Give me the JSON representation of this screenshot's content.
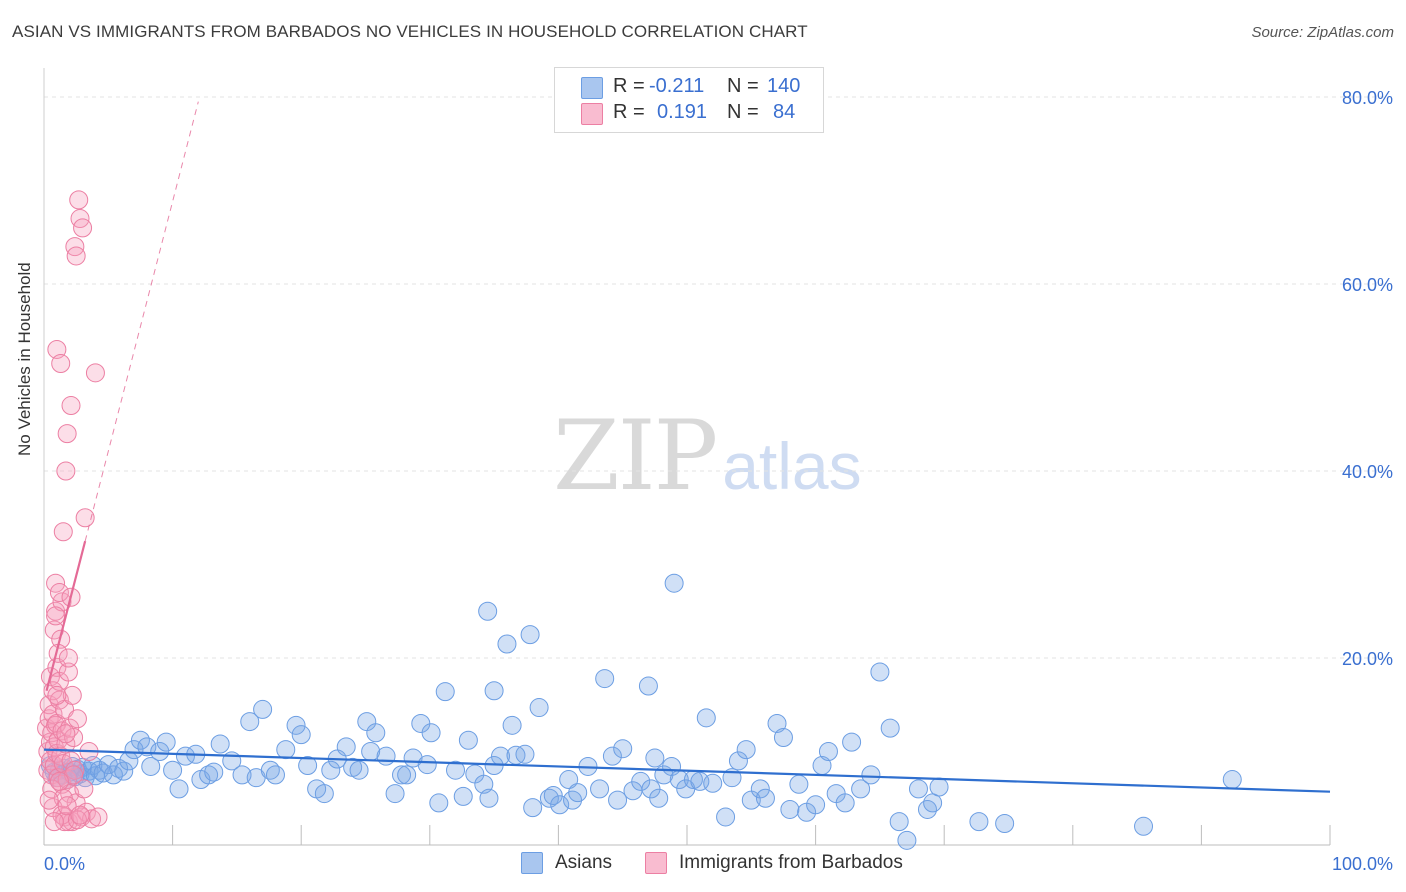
{
  "header": {
    "title": "ASIAN VS IMMIGRANTS FROM BARBADOS NO VEHICLES IN HOUSEHOLD CORRELATION CHART",
    "source": "Source: ZipAtlas.com"
  },
  "watermark": {
    "zip": "ZIP",
    "atlas": "atlas"
  },
  "legend": {
    "rows": [
      {
        "r_label": "R =",
        "r_value": "-0.211",
        "n_label": "N =",
        "n_value": "140",
        "color": "#a9c6ef",
        "edge": "#6c9ee3"
      },
      {
        "r_label": "R =",
        "r_value": "0.191",
        "n_label": "N =",
        "n_value": "84",
        "color": "#f9bcd0",
        "edge": "#ec7fa3"
      }
    ]
  },
  "bottom_legend": [
    {
      "label": "Asians",
      "color": "#a9c6ef",
      "edge": "#6c9ee3"
    },
    {
      "label": "Immigrants from Barbados",
      "color": "#f9bcd0",
      "edge": "#ec7fa3"
    }
  ],
  "colors": {
    "asian": "#6c9ee3",
    "asian_fill": "rgba(120,165,230,0.35)",
    "barbados": "#ec7fa3",
    "barbados_fill": "rgba(245,160,190,0.35)",
    "trend_asian": "#2f6fcf",
    "trend_barbados": "#e46a96",
    "tick_label": "#3a6fd0"
  },
  "chart_data": {
    "type": "scatter",
    "title": "ASIAN VS IMMIGRANTS FROM BARBADOS NO VEHICLES IN HOUSEHOLD CORRELATION CHART",
    "xlabel": "",
    "ylabel": "No Vehicles in Household",
    "xlim": [
      0,
      100
    ],
    "ylim": [
      0,
      80
    ],
    "x_tick_labels": [
      "0.0%",
      "100.0%"
    ],
    "y_ticks": [
      20,
      40,
      60,
      80
    ],
    "y_tick_labels": [
      "20.0%",
      "40.0%",
      "60.0%",
      "80.0%"
    ],
    "grid": true,
    "legend_position": "top-center",
    "series": [
      {
        "name": "Asians",
        "r": -0.211,
        "n": 140,
        "trend": {
          "x": [
            0,
            100
          ],
          "y": [
            10.2,
            5.7
          ]
        },
        "points": [
          [
            0.5,
            8.5
          ],
          [
            0.8,
            7.8
          ],
          [
            1.0,
            7.2
          ],
          [
            1.2,
            8.0
          ],
          [
            1.4,
            7.5
          ],
          [
            1.6,
            8.2
          ],
          [
            1.8,
            7.0
          ],
          [
            2.0,
            7.8
          ],
          [
            2.2,
            8.4
          ],
          [
            2.4,
            7.3
          ],
          [
            2.6,
            8.1
          ],
          [
            2.8,
            7.6
          ],
          [
            3.0,
            8.3
          ],
          [
            3.2,
            7.2
          ],
          [
            3.5,
            7.9
          ],
          [
            3.8,
            8.5
          ],
          [
            4.0,
            7.4
          ],
          [
            4.3,
            8.0
          ],
          [
            4.6,
            7.7
          ],
          [
            5.0,
            8.6
          ],
          [
            5.4,
            7.5
          ],
          [
            5.8,
            8.2
          ],
          [
            6.2,
            7.9
          ],
          [
            6.6,
            9.0
          ],
          [
            7.0,
            10.2
          ],
          [
            7.5,
            11.2
          ],
          [
            8.0,
            10.5
          ],
          [
            8.3,
            8.4
          ],
          [
            9.0,
            10.0
          ],
          [
            9.5,
            11.0
          ],
          [
            10.0,
            8.0
          ],
          [
            10.5,
            6.0
          ],
          [
            11.0,
            9.5
          ],
          [
            11.8,
            9.7
          ],
          [
            12.2,
            7.0
          ],
          [
            12.8,
            7.5
          ],
          [
            13.2,
            7.8
          ],
          [
            13.7,
            10.8
          ],
          [
            14.6,
            9.0
          ],
          [
            15.4,
            7.5
          ],
          [
            16.0,
            13.2
          ],
          [
            16.5,
            7.2
          ],
          [
            17.0,
            14.5
          ],
          [
            17.6,
            8.0
          ],
          [
            18.0,
            7.5
          ],
          [
            18.8,
            10.2
          ],
          [
            19.6,
            12.8
          ],
          [
            20.0,
            11.8
          ],
          [
            20.5,
            8.5
          ],
          [
            21.2,
            6.0
          ],
          [
            21.8,
            5.5
          ],
          [
            22.3,
            8.0
          ],
          [
            22.8,
            9.2
          ],
          [
            23.5,
            10.5
          ],
          [
            24.0,
            8.3
          ],
          [
            24.5,
            8.0
          ],
          [
            25.1,
            13.2
          ],
          [
            25.4,
            10.0
          ],
          [
            25.8,
            12.0
          ],
          [
            26.6,
            9.5
          ],
          [
            27.3,
            5.5
          ],
          [
            27.8,
            7.5
          ],
          [
            28.2,
            7.5
          ],
          [
            28.7,
            9.3
          ],
          [
            29.3,
            13.0
          ],
          [
            29.8,
            8.6
          ],
          [
            30.1,
            12.0
          ],
          [
            30.7,
            4.5
          ],
          [
            31.2,
            16.4
          ],
          [
            32.0,
            8.0
          ],
          [
            32.6,
            5.2
          ],
          [
            33.0,
            11.2
          ],
          [
            33.5,
            7.6
          ],
          [
            34.2,
            6.5
          ],
          [
            34.6,
            5.0
          ],
          [
            35.0,
            8.5
          ],
          [
            35.5,
            9.5
          ],
          [
            36.0,
            21.5
          ],
          [
            36.4,
            12.8
          ],
          [
            36.7,
            9.6
          ],
          [
            37.4,
            9.7
          ],
          [
            38.0,
            4.0
          ],
          [
            38.5,
            14.7
          ],
          [
            39.3,
            5.0
          ],
          [
            39.6,
            5.3
          ],
          [
            40.1,
            4.3
          ],
          [
            40.8,
            7.0
          ],
          [
            41.1,
            4.8
          ],
          [
            41.5,
            5.6
          ],
          [
            42.3,
            8.4
          ],
          [
            43.2,
            6.0
          ],
          [
            43.6,
            17.8
          ],
          [
            44.2,
            9.5
          ],
          [
            44.6,
            4.8
          ],
          [
            45.0,
            10.3
          ],
          [
            45.8,
            5.8
          ],
          [
            46.4,
            6.8
          ],
          [
            47.2,
            6.0
          ],
          [
            47.5,
            9.3
          ],
          [
            47.8,
            5.0
          ],
          [
            48.2,
            7.5
          ],
          [
            48.8,
            8.4
          ],
          [
            49.4,
            7.0
          ],
          [
            49.9,
            6.0
          ],
          [
            50.5,
            7.0
          ],
          [
            51.0,
            6.8
          ],
          [
            51.5,
            13.6
          ],
          [
            52.0,
            6.6
          ],
          [
            53.0,
            3.0
          ],
          [
            53.5,
            7.2
          ],
          [
            54.0,
            9.0
          ],
          [
            54.6,
            10.2
          ],
          [
            55.0,
            4.8
          ],
          [
            55.7,
            6.0
          ],
          [
            56.1,
            5.0
          ],
          [
            57.0,
            13.0
          ],
          [
            57.5,
            11.5
          ],
          [
            58.0,
            3.8
          ],
          [
            58.7,
            6.5
          ],
          [
            59.3,
            3.5
          ],
          [
            60.0,
            4.3
          ],
          [
            60.5,
            8.5
          ],
          [
            61.0,
            10.0
          ],
          [
            61.6,
            5.5
          ],
          [
            62.3,
            4.5
          ],
          [
            62.8,
            11.0
          ],
          [
            63.5,
            6.0
          ],
          [
            64.3,
            7.5
          ],
          [
            65.0,
            18.5
          ],
          [
            65.8,
            12.5
          ],
          [
            66.5,
            2.5
          ],
          [
            67.1,
            0.5
          ],
          [
            68.0,
            6.0
          ],
          [
            68.7,
            3.8
          ],
          [
            69.1,
            4.5
          ],
          [
            69.6,
            6.2
          ],
          [
            72.7,
            2.5
          ],
          [
            74.7,
            2.3
          ],
          [
            85.5,
            2.0
          ],
          [
            92.4,
            7.0
          ],
          [
            34.5,
            25.0
          ],
          [
            49.0,
            28.0
          ],
          [
            37.8,
            22.5
          ],
          [
            47.0,
            17.0
          ],
          [
            35.0,
            16.5
          ]
        ]
      },
      {
        "name": "Immigrants from Barbados",
        "r": 0.191,
        "n": 84,
        "trend_solid": {
          "x": [
            0.2,
            3.2
          ],
          "y": [
            16.5,
            32.5
          ]
        },
        "trend_dashed": {
          "x": [
            3.2,
            12.0
          ],
          "y": [
            32.5,
            79.5
          ]
        },
        "points": [
          [
            0.2,
            12.5
          ],
          [
            0.3,
            10.0
          ],
          [
            0.3,
            8.0
          ],
          [
            0.4,
            13.5
          ],
          [
            0.4,
            15.0
          ],
          [
            0.5,
            11.0
          ],
          [
            0.5,
            9.0
          ],
          [
            0.5,
            18.0
          ],
          [
            0.6,
            7.5
          ],
          [
            0.6,
            12.0
          ],
          [
            0.7,
            14.0
          ],
          [
            0.7,
            16.5
          ],
          [
            0.8,
            10.5
          ],
          [
            0.8,
            8.5
          ],
          [
            0.8,
            23.0
          ],
          [
            0.9,
            25.0
          ],
          [
            0.9,
            28.0
          ],
          [
            0.9,
            12.8
          ],
          [
            1.0,
            9.8
          ],
          [
            1.0,
            13.0
          ],
          [
            1.0,
            19.0
          ],
          [
            1.1,
            11.2
          ],
          [
            1.1,
            7.2
          ],
          [
            1.2,
            15.5
          ],
          [
            1.2,
            17.5
          ],
          [
            1.3,
            22.0
          ],
          [
            1.3,
            9.5
          ],
          [
            1.4,
            6.5
          ],
          [
            1.4,
            26.0
          ],
          [
            1.4,
            12.2
          ],
          [
            1.5,
            33.5
          ],
          [
            1.5,
            8.7
          ],
          [
            1.6,
            14.5
          ],
          [
            1.6,
            3.0
          ],
          [
            1.7,
            10.8
          ],
          [
            1.7,
            40.0
          ],
          [
            1.8,
            44.0
          ],
          [
            1.8,
            7.0
          ],
          [
            1.9,
            2.5
          ],
          [
            1.9,
            18.5
          ],
          [
            2.0,
            5.5
          ],
          [
            2.0,
            12.5
          ],
          [
            2.1,
            47.0
          ],
          [
            2.1,
            9.0
          ],
          [
            2.2,
            2.5
          ],
          [
            2.2,
            16.0
          ],
          [
            2.3,
            11.5
          ],
          [
            2.4,
            64.0
          ],
          [
            2.4,
            8.0
          ],
          [
            2.5,
            63.0
          ],
          [
            2.5,
            4.5
          ],
          [
            2.6,
            13.5
          ],
          [
            2.7,
            69.0
          ],
          [
            2.8,
            67.0
          ],
          [
            2.9,
            3.0
          ],
          [
            3.0,
            66.0
          ],
          [
            3.1,
            6.0
          ],
          [
            3.2,
            35.0
          ],
          [
            3.3,
            3.5
          ],
          [
            3.5,
            10.0
          ],
          [
            3.7,
            2.8
          ],
          [
            4.0,
            50.5
          ],
          [
            4.2,
            3.0
          ],
          [
            1.0,
            53.0
          ],
          [
            1.3,
            51.5
          ],
          [
            1.1,
            20.5
          ],
          [
            0.9,
            24.5
          ],
          [
            1.2,
            27.0
          ],
          [
            0.6,
            6.0
          ],
          [
            0.7,
            4.0
          ],
          [
            1.4,
            3.2
          ],
          [
            1.6,
            2.5
          ],
          [
            1.5,
            5.0
          ],
          [
            0.8,
            2.5
          ],
          [
            2.6,
            2.7
          ],
          [
            1.8,
            4.2
          ],
          [
            2.1,
            26.5
          ],
          [
            1.9,
            20.0
          ],
          [
            1.0,
            16.0
          ],
          [
            1.7,
            11.9
          ],
          [
            2.3,
            7.5
          ],
          [
            2.8,
            3.2
          ],
          [
            0.4,
            4.8
          ],
          [
            1.2,
            6.8
          ]
        ]
      }
    ]
  }
}
